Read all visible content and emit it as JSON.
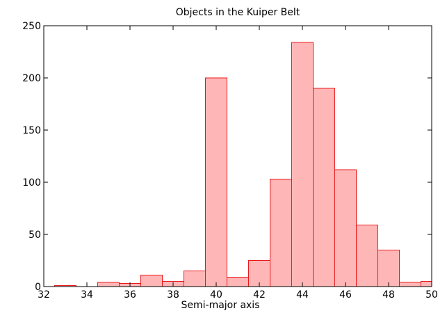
{
  "chart_data": {
    "type": "bar",
    "title": "Objects in the Kuiper Belt",
    "xlabel": "Semi-major axis",
    "ylabel": "",
    "xlim": [
      32,
      50
    ],
    "ylim": [
      0,
      250
    ],
    "xticks": [
      32,
      34,
      36,
      38,
      40,
      42,
      44,
      46,
      48,
      50
    ],
    "yticks": [
      0,
      50,
      100,
      150,
      200,
      250
    ],
    "grid": false,
    "bar_color": "#ffb6b6",
    "edge_color": "#e8191c",
    "bins": [
      {
        "x0": 32.5,
        "x1": 33.5,
        "value": 1
      },
      {
        "x0": 33.5,
        "x1": 34.5,
        "value": 0
      },
      {
        "x0": 34.5,
        "x1": 35.5,
        "value": 4
      },
      {
        "x0": 35.5,
        "x1": 36.5,
        "value": 3
      },
      {
        "x0": 36.5,
        "x1": 37.5,
        "value": 11
      },
      {
        "x0": 37.5,
        "x1": 38.5,
        "value": 5
      },
      {
        "x0": 38.5,
        "x1": 39.5,
        "value": 15
      },
      {
        "x0": 39.5,
        "x1": 40.5,
        "value": 200
      },
      {
        "x0": 40.5,
        "x1": 41.5,
        "value": 9
      },
      {
        "x0": 41.5,
        "x1": 42.5,
        "value": 25
      },
      {
        "x0": 42.5,
        "x1": 43.5,
        "value": 103
      },
      {
        "x0": 43.5,
        "x1": 44.5,
        "value": 234
      },
      {
        "x0": 44.5,
        "x1": 45.5,
        "value": 190
      },
      {
        "x0": 45.5,
        "x1": 46.5,
        "value": 112
      },
      {
        "x0": 46.5,
        "x1": 47.5,
        "value": 59
      },
      {
        "x0": 47.5,
        "x1": 48.5,
        "value": 35
      },
      {
        "x0": 48.5,
        "x1": 49.5,
        "value": 4
      },
      {
        "x0": 49.5,
        "x1": 50.5,
        "value": 5
      }
    ]
  }
}
